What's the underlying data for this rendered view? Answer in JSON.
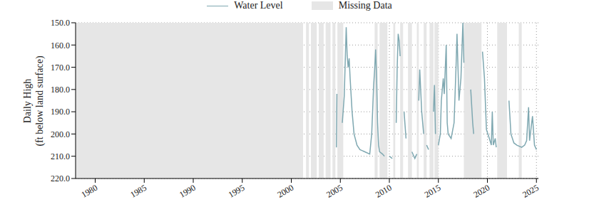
{
  "chart_data": {
    "type": "line",
    "y_label": [
      "Daily High",
      "(ft below land surface)"
    ],
    "x": [
      2004.6,
      2004.65,
      2004.7,
      2005.2,
      2005.4,
      2005.6,
      2005.7,
      2005.8,
      2005.9,
      2006.0,
      2006.2,
      2006.4,
      2006.7,
      2007.0,
      2007.5,
      2008.0,
      2008.2,
      2008.4,
      2008.5,
      2008.6,
      2008.7,
      2008.8,
      2008.9,
      2009.0,
      2009.3,
      2009.5,
      2009.7,
      2010.0,
      2010.3,
      2010.5,
      2010.7,
      2010.8,
      2010.9,
      2011.0,
      2011.1,
      2011.3,
      2011.5,
      2011.7,
      2011.9,
      2012.3,
      2012.6,
      2012.8,
      2012.9,
      2013.0,
      2013.1,
      2013.3,
      2013.5,
      2013.6,
      2013.8,
      2014.0,
      2014.2,
      2014.5,
      2014.6,
      2014.7,
      2014.8,
      2015.0,
      2015.2,
      2015.3,
      2015.5,
      2015.6,
      2015.8,
      2015.9,
      2016.0,
      2016.3,
      2016.6,
      2016.8,
      2016.9,
      2017.1,
      2017.3,
      2017.5,
      2017.6,
      2017.9,
      2018.3,
      2018.5,
      2018.6,
      2019.0,
      2019.5,
      2019.7,
      2019.9,
      2020.2,
      2020.4,
      2020.5,
      2020.6,
      2020.8,
      2020.9,
      2021.5,
      2022.2,
      2022.4,
      2022.7,
      2023.0,
      2023.5,
      2023.8,
      2024.0,
      2024.2,
      2024.3,
      2024.6,
      2024.8,
      2025.0
    ],
    "series": [
      {
        "name": "Water Level",
        "color": "#7fa8b1",
        "values": [
          206,
          182,
          null,
          195,
          183,
          152,
          165,
          170,
          166,
          175,
          190,
          200,
          205,
          207,
          208,
          209,
          200,
          178,
          171,
          162,
          175,
          195,
          205,
          208,
          209,
          210,
          null,
          210,
          211,
          null,
          195,
          170,
          155,
          158,
          165,
          null,
          190,
          202,
          null,
          208,
          211,
          209,
          null,
          185,
          171,
          190,
          200,
          null,
          205,
          207,
          null,
          190,
          178,
          200,
          null,
          205,
          200,
          185,
          175,
          182,
          160,
          195,
          200,
          202,
          195,
          170,
          155,
          185,
          175,
          150,
          168,
          null,
          180,
          195,
          200,
          null,
          163,
          175,
          198,
          202,
          205,
          190,
          205,
          202,
          206,
          null,
          185,
          200,
          204,
          205,
          206,
          205,
          203,
          188,
          203,
          192,
          205,
          207
        ]
      }
    ],
    "missing_data": {
      "name": "Missing Data",
      "color": "#e6e6e6",
      "ranges": [
        [
          1978,
          2001.2
        ],
        [
          2001.5,
          2001.8
        ],
        [
          2002.0,
          2002.6
        ],
        [
          2002.8,
          2003.3
        ],
        [
          2003.5,
          2004.0
        ],
        [
          2004.2,
          2004.5
        ],
        [
          2004.7,
          2005.3
        ],
        [
          2008.5,
          2008.8
        ],
        [
          2009.0,
          2009.8
        ],
        [
          2010.4,
          2010.6
        ],
        [
          2011.1,
          2011.4
        ],
        [
          2011.9,
          2012.3
        ],
        [
          2012.8,
          2013.0
        ],
        [
          2013.5,
          2013.8
        ],
        [
          2014.1,
          2014.5
        ],
        [
          2014.6,
          2015.0
        ],
        [
          2017.6,
          2019.4
        ],
        [
          2021.0,
          2022.0
        ],
        [
          2023.2,
          2023.5
        ]
      ]
    },
    "xlim": [
      1978,
      2025.2
    ],
    "xticks": [
      1980,
      1985,
      1990,
      1995,
      2000,
      2005,
      2010,
      2015,
      2020,
      2025
    ],
    "ylim": [
      220,
      150
    ],
    "yticks": [
      {
        "value": 150,
        "label": "150.0"
      },
      {
        "value": 160,
        "label": "160.0"
      },
      {
        "value": 170,
        "label": "170.0"
      },
      {
        "value": 180,
        "label": "180.0"
      },
      {
        "value": 190,
        "label": "190.0"
      },
      {
        "value": 200,
        "label": "200.0"
      },
      {
        "value": 210,
        "label": "210.0"
      },
      {
        "value": 220,
        "label": "220.0"
      }
    ],
    "grid": true
  }
}
